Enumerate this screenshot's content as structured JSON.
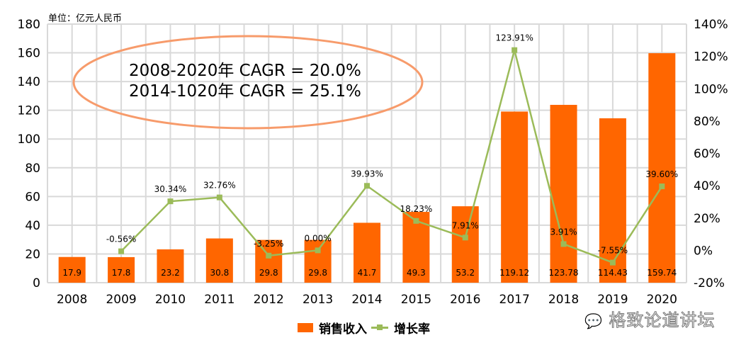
{
  "chart_data": {
    "type": "bar",
    "unit_label": "单位：亿元人民币",
    "categories": [
      "2008",
      "2009",
      "2010",
      "2011",
      "2012",
      "2013",
      "2014",
      "2015",
      "2016",
      "2017",
      "2018",
      "2019",
      "2020"
    ],
    "series": [
      {
        "name": "销售收入",
        "type": "bar",
        "axis": "left",
        "color": "#FF6600",
        "values": [
          17.9,
          17.8,
          23.2,
          30.8,
          29.8,
          29.8,
          41.7,
          49.3,
          53.2,
          119.12,
          123.78,
          114.43,
          159.74
        ],
        "labels": [
          "17.9",
          "17.8",
          "23.2",
          "30.8",
          "29.8",
          "29.8",
          "41.7",
          "49.3",
          "53.2",
          "119.12",
          "123.78",
          "114.43",
          "159.74"
        ]
      },
      {
        "name": "增长率",
        "type": "line",
        "axis": "right",
        "color": "#9BBB59",
        "values": [
          null,
          -0.56,
          30.34,
          32.76,
          -3.25,
          0.0,
          39.93,
          18.23,
          7.91,
          123.91,
          3.91,
          -7.55,
          39.6
        ],
        "labels": [
          "",
          "-0.56%",
          "30.34%",
          "32.76%",
          "-3.25%",
          "0.00%",
          "39.93%",
          "18.23%",
          "7.91%",
          "123.91%",
          "3.91%",
          "-7.55%",
          "39.60%"
        ]
      }
    ],
    "ylim": [
      0,
      180
    ],
    "yticks": [
      "0",
      "20",
      "40",
      "60",
      "80",
      "100",
      "120",
      "140",
      "160",
      "180"
    ],
    "y2lim": [
      -20,
      140
    ],
    "y2ticks": [
      "-20%",
      "0%",
      "20%",
      "40%",
      "60%",
      "80%",
      "100%",
      "120%",
      "140%"
    ],
    "grid": true,
    "legend_position": "bottom",
    "annotations": [
      "2008-2020年 CAGR = 20.0%",
      "2014-1020年 CAGR = 25.1%"
    ]
  },
  "watermark": "格致论道讲坛"
}
